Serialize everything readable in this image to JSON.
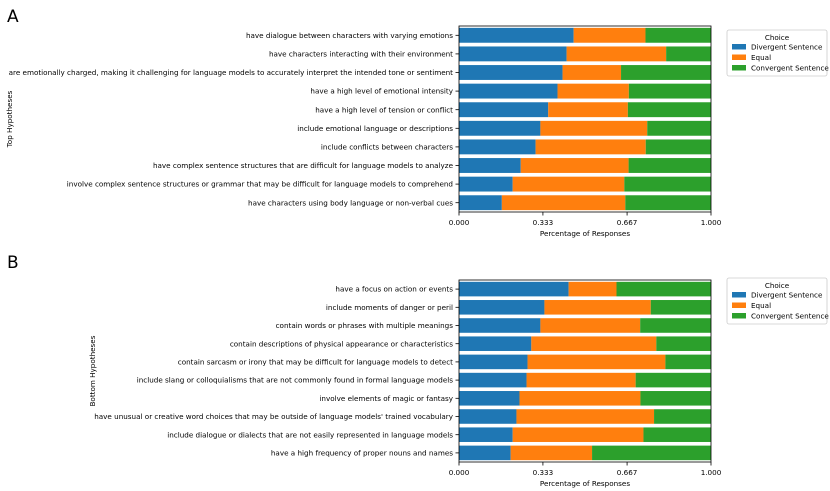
{
  "chart_data": [
    {
      "type": "bar",
      "orientation": "horizontal",
      "stacked": true,
      "panel_label": "A",
      "title": "",
      "xlabel": "Percentage of Responses",
      "ylabel": "Top Hypotheses",
      "xlim": [
        0,
        1
      ],
      "xticks": [
        "0.000",
        "0.333",
        "0.667",
        "1.000"
      ],
      "legend": {
        "title": "Choice",
        "placement": "upper-right-outside"
      },
      "categories": [
        "have dialogue between characters with varying emotions",
        "have characters interacting with their environment",
        "are emotionally charged, making it challenging for language models to accurately interpret the intended tone or sentiment",
        "have a high level of emotional intensity",
        "have a high level of tension or conflict",
        "include emotional language or descriptions",
        "include conflicts between characters",
        "have complex sentence structures that are difficult for language models to analyze",
        "involve complex sentence structures or grammar that may be difficult for language models to comprehend",
        "have characters using body language or non-verbal cues"
      ],
      "series": [
        {
          "name": "Divergent Sentence",
          "color": "#1f77b4",
          "values": [
            0.455,
            0.427,
            0.411,
            0.391,
            0.354,
            0.323,
            0.304,
            0.245,
            0.213,
            0.17
          ]
        },
        {
          "name": "Equal",
          "color": "#ff7f0e",
          "values": [
            0.285,
            0.395,
            0.232,
            0.283,
            0.316,
            0.424,
            0.437,
            0.428,
            0.443,
            0.49
          ]
        },
        {
          "name": "Convergent Sentence",
          "color": "#2ca02c",
          "values": [
            0.26,
            0.178,
            0.357,
            0.326,
            0.33,
            0.253,
            0.259,
            0.327,
            0.344,
            0.34
          ]
        }
      ]
    },
    {
      "type": "bar",
      "orientation": "horizontal",
      "stacked": true,
      "panel_label": "B",
      "title": "",
      "xlabel": "Percentage of Responses",
      "ylabel": "Bottom Hypotheses",
      "xlim": [
        0,
        1
      ],
      "xticks": [
        "0.000",
        "0.333",
        "0.667",
        "1.000"
      ],
      "legend": {
        "title": "Choice",
        "placement": "upper-right-outside"
      },
      "categories": [
        "have a focus on action or events",
        "include moments of danger or peril",
        "contain words or phrases with multiple meanings",
        "contain descriptions of physical appearance or characteristics",
        "contain sarcasm or irony that may be difficult for language models to detect",
        "include slang or colloquialisms that are not commonly found in formal language models",
        "involve elements of magic or fantasy",
        "have unusual or creative word choices that may be outside of language models' trained vocabulary",
        "include dialogue or dialects that are not easily represented in language models",
        "have a high frequency of proper nouns and names"
      ],
      "series": [
        {
          "name": "Divergent Sentence",
          "color": "#1f77b4",
          "values": [
            0.435,
            0.339,
            0.323,
            0.287,
            0.272,
            0.268,
            0.24,
            0.228,
            0.213,
            0.205
          ]
        },
        {
          "name": "Equal",
          "color": "#ff7f0e",
          "values": [
            0.19,
            0.422,
            0.396,
            0.496,
            0.547,
            0.433,
            0.48,
            0.546,
            0.519,
            0.323
          ]
        },
        {
          "name": "Convergent Sentence",
          "color": "#2ca02c",
          "values": [
            0.375,
            0.239,
            0.281,
            0.217,
            0.181,
            0.299,
            0.28,
            0.226,
            0.268,
            0.472
          ]
        }
      ]
    }
  ]
}
